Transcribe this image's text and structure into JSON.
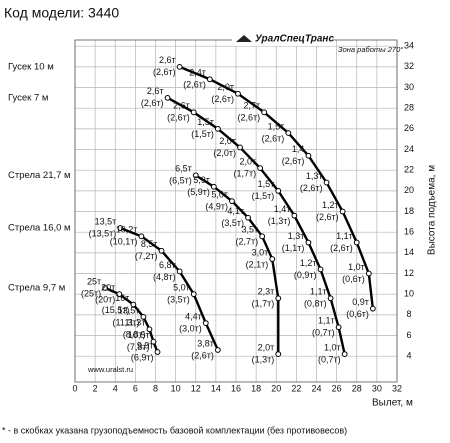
{
  "chart_data": {
    "type": "line",
    "title": "Код модели: 3440",
    "brand": "УралСпецТранс",
    "zone": "Зона работы 270°",
    "site": "www.uralst.ru",
    "xlabel": "Вылет, м",
    "ylabel": "Высота подъема, м",
    "footnote": "* - в скобках указана грузоподъемность базовой комплектации (без противовесов)",
    "xlim": [
      0,
      32
    ],
    "xticks": [
      0,
      2,
      4,
      6,
      8,
      10,
      12,
      14,
      16,
      18,
      20,
      22,
      24,
      26,
      28,
      30,
      32
    ],
    "ylim": [
      1.5,
      34.6
    ],
    "yticks": [
      4,
      6,
      8,
      10,
      12,
      14,
      16,
      18,
      20,
      22,
      24,
      26,
      28,
      30,
      32,
      34
    ],
    "grid": true,
    "series": [
      {
        "name": "Гусек 10 м",
        "color": "#000000",
        "x": [
          10.4,
          13.4,
          16.2,
          18.8,
          21.2,
          23.2,
          25,
          26.6,
          28,
          29.2,
          29.6
        ],
        "values": [
          32,
          30.8,
          29.4,
          27.6,
          25.6,
          23.4,
          20.8,
          18,
          15,
          12,
          8.6
        ],
        "loads": [
          "2,6т",
          "2,4т",
          "2,0т",
          "2,7т",
          "1,5т",
          "1,4",
          "1,3т",
          "1,2т",
          "1,1т",
          "1,0т",
          "0,9т"
        ],
        "base_loads": [
          "(2,6т)",
          "(2,6т)",
          "(2,6т)",
          "(2,6т)",
          "(2,6т)",
          "(2,6т)",
          "(2,6т)",
          "(2,6т)",
          "(2,6т)",
          "(0,6т)",
          "(0,6т)"
        ]
      },
      {
        "name": "Гусек 7 м",
        "color": "#000000",
        "x": [
          9.2,
          11.8,
          14.2,
          16.4,
          18.4,
          20.2,
          21.8,
          23.2,
          24.4,
          25.4,
          26.2,
          26.8
        ],
        "values": [
          29,
          27.6,
          26,
          24.2,
          22.2,
          20,
          17.6,
          15,
          12.4,
          9.6,
          6.8,
          4.2
        ],
        "loads": [
          "2,6т",
          "2,6т",
          "1,5т",
          "2,0т",
          "2,0т",
          "1,5т",
          "1,4т",
          "1,3т",
          "1,2т",
          "1,1т",
          "1,1т",
          "1,0т"
        ],
        "base_loads": [
          "(2,6т)",
          "(2,6т)",
          "(1,5т)",
          "(2,0т)",
          "(1,7т)",
          "(1,5т)",
          "(1,3т)",
          "(1,1т)",
          "(0,9т)",
          "(0,8т)",
          "(0,7т)",
          "(0,7т)"
        ]
      },
      {
        "name": "Стрела 21,7 м",
        "color": "#000000",
        "x": [
          12,
          13.8,
          15.6,
          17.2,
          18.6,
          19.6,
          20.2,
          20.2
        ],
        "values": [
          21.5,
          20.4,
          19,
          17.4,
          15.6,
          13.4,
          9.6,
          4.2
        ],
        "loads": [
          "6,5т",
          "5,9т",
          "5,0т",
          "4,1т",
          "3,5т",
          "3,0т",
          "2,3т",
          "2,0т"
        ],
        "base_loads": [
          "(6,5т)",
          "(5,9т)",
          "(4,9т)",
          "(3,5т)",
          "(2,7т)",
          "(2,1т)",
          "(1,7т)",
          "(1,3т)"
        ]
      },
      {
        "name": "Стрела 16,0 м",
        "color": "#000000",
        "x": [
          4.5,
          6.6,
          8.6,
          10.4,
          11.8,
          13,
          14.2
        ],
        "values": [
          16.4,
          15.6,
          14.2,
          12.2,
          10,
          7.2,
          4.6
        ],
        "loads": [
          "13,5т",
          "10,2т",
          "8,5т",
          "6,8т",
          "5,0т",
          "4,4т",
          "3,8т"
        ],
        "base_loads": [
          "(13,5т)",
          "(10,1т)",
          "(7,2т)",
          "(4,8т)",
          "(3,5т)",
          "(3,0т)",
          "(2,6т)"
        ]
      },
      {
        "name": "Стрела 9,7 м",
        "color": "#000000",
        "x": [
          3,
          4.4,
          5.8,
          6.8,
          7.4,
          7.8,
          8.2
        ],
        "values": [
          10.6,
          10,
          9,
          7.8,
          6.6,
          5.4,
          4.4
        ],
        "loads": [
          "25т",
          "20т",
          "16т",
          "13,5т",
          "11,3т",
          "10,5т",
          "9,9т"
        ],
        "base_loads": [
          "(25т)",
          "(20т)",
          "(15,5т)",
          "(11,3т)",
          "(8,8т)",
          "(7,8т)",
          "(6,9т)"
        ]
      }
    ]
  }
}
